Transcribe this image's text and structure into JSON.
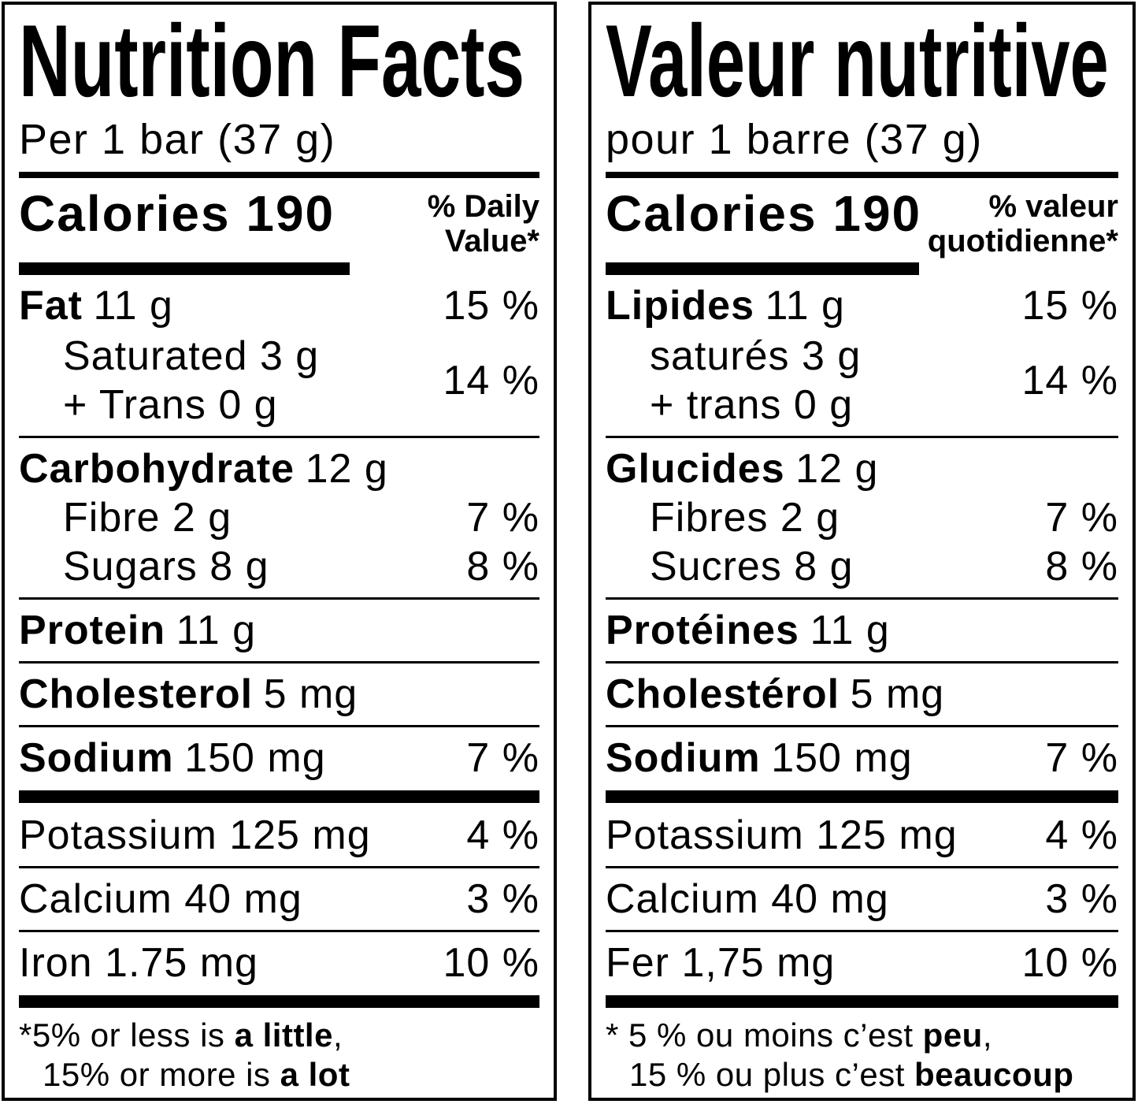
{
  "panels": {
    "en": {
      "title": "Nutrition Facts",
      "serving": "Per 1 bar (37 g)",
      "calories": "Calories 190",
      "dv_line1": "% Daily",
      "dv_line2": "Value*",
      "rows": {
        "fat": {
          "name": "Fat",
          "amount": "11 g",
          "dv": "15 %"
        },
        "sat_trans": {
          "line1": "Saturated 3 g",
          "line2": "+ Trans 0 g",
          "dv": "14 %"
        },
        "carb": {
          "name": "Carbohydrate",
          "amount": "12 g"
        },
        "fibre": {
          "name": "Fibre 2 g",
          "dv": "7 %"
        },
        "sugars": {
          "name": "Sugars 8 g",
          "dv": "8 %"
        },
        "protein": {
          "name": "Protein",
          "amount": "11 g"
        },
        "cholesterol": {
          "name": "Cholesterol",
          "amount": "5 mg"
        },
        "sodium": {
          "name": "Sodium",
          "amount": "150 mg",
          "dv": "7 %"
        },
        "potassium": {
          "name": "Potassium 125 mg",
          "dv": "4 %"
        },
        "calcium": {
          "name": "Calcium 40 mg",
          "dv": "3 %"
        },
        "iron": {
          "name": "Iron 1.75 mg",
          "dv": "10 %"
        }
      },
      "footnote": {
        "line1_pre": "*5% or less is ",
        "line1_bold": "a little",
        "line1_post": ",",
        "line2_pre": "15% or more is ",
        "line2_bold": "a lot",
        "line2_post": ""
      }
    },
    "fr": {
      "title": "Valeur nutritive",
      "serving": "pour 1 barre (37 g)",
      "calories": "Calories 190",
      "dv_line1": "% valeur",
      "dv_line2": "quotidienne*",
      "rows": {
        "fat": {
          "name": "Lipides",
          "amount": "11 g",
          "dv": "15 %"
        },
        "sat_trans": {
          "line1": "saturés 3 g",
          "line2": "+ trans 0 g",
          "dv": "14 %"
        },
        "carb": {
          "name": "Glucides",
          "amount": "12 g"
        },
        "fibre": {
          "name": "Fibres 2 g",
          "dv": "7 %"
        },
        "sugars": {
          "name": "Sucres 8 g",
          "dv": "8 %"
        },
        "protein": {
          "name": "Protéines",
          "amount": "11 g"
        },
        "cholesterol": {
          "name": "Cholestérol",
          "amount": "5 mg"
        },
        "sodium": {
          "name": "Sodium",
          "amount": "150 mg",
          "dv": "7 %"
        },
        "potassium": {
          "name": "Potassium 125 mg",
          "dv": "4 %"
        },
        "calcium": {
          "name": "Calcium 40 mg",
          "dv": "3 %"
        },
        "iron": {
          "name": "Fer 1,75 mg",
          "dv": "10 %"
        }
      },
      "footnote": {
        "line1_pre": "* 5 % ou moins c’est ",
        "line1_bold": "peu",
        "line1_post": ",",
        "line2_pre": "15 % ou plus c’est ",
        "line2_bold": "beaucoup",
        "line2_post": ""
      }
    }
  }
}
